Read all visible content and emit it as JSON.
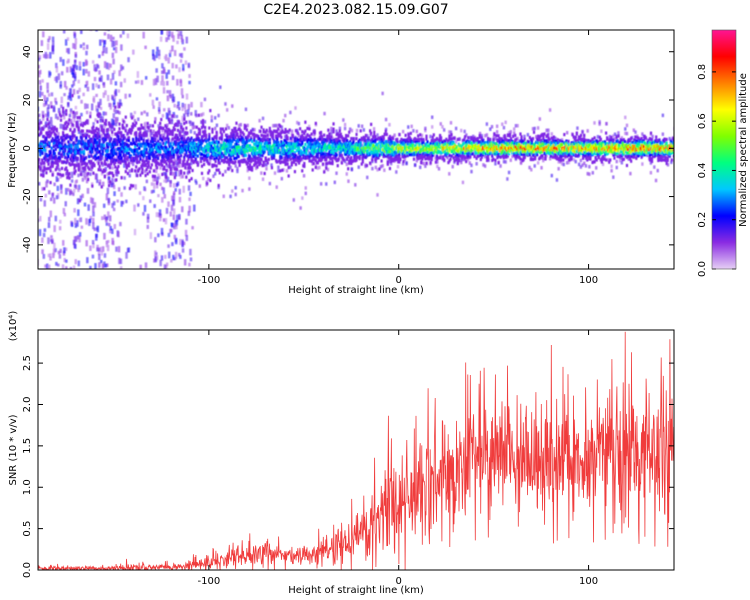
{
  "title": "C2E4.2023.082.15.09.G07",
  "chart_data": [
    {
      "type": "heatmap",
      "title": "C2E4.2023.082.15.09.G07",
      "xlabel": "Height of straight line (km)",
      "ylabel": "Frequency (Hz)",
      "xlim": [
        -190,
        145
      ],
      "ylim": [
        -50,
        49
      ],
      "x_ticks": [
        -100,
        0,
        100
      ],
      "y_ticks": [
        -40,
        -20,
        0,
        20,
        40
      ],
      "colorbar": {
        "label": "Normalized spectral amplitude",
        "range": [
          0,
          0.97
        ],
        "ticks": [
          0.0,
          0.2,
          0.4,
          0.6,
          0.8
        ],
        "colormap": [
          "#e6d0f5",
          "#8a2be2",
          "#0000ff",
          "#00c8ff",
          "#00ff80",
          "#80ff00",
          "#ffff00",
          "#ff8000",
          "#ff0000",
          "#ff1493"
        ]
      },
      "description_profile": {
        "x": [
          -190,
          -170,
          -150,
          -130,
          -110,
          -90,
          -70,
          -50,
          -30,
          -10,
          10,
          30,
          50,
          70,
          90,
          110,
          130,
          145
        ],
        "peak_amplitude": [
          0.3,
          0.3,
          0.3,
          0.32,
          0.35,
          0.45,
          0.45,
          0.42,
          0.45,
          0.6,
          0.7,
          0.78,
          0.85,
          0.85,
          0.8,
          0.85,
          0.88,
          0.88
        ],
        "band_halfwidth_hz": [
          8,
          8,
          8,
          7,
          6,
          6,
          5,
          5,
          4,
          4,
          3,
          3,
          3,
          3,
          3,
          3,
          3,
          3
        ]
      }
    },
    {
      "type": "line",
      "xlabel": "Height of straight line (km)",
      "ylabel": "SNR (10 * v/v)",
      "y_multiplier": "(x10⁴)",
      "xlim": [
        -190,
        145
      ],
      "ylim": [
        0,
        2.9
      ],
      "x_ticks": [
        -100,
        0,
        100
      ],
      "y_ticks": [
        0.0,
        0.5,
        1.0,
        1.5,
        2.0,
        2.5
      ],
      "series": [
        {
          "name": "SNR",
          "color": "#f03c3c",
          "x": [
            -190,
            -170,
            -150,
            -140,
            -130,
            -115,
            -100,
            -90,
            -80,
            -70,
            -60,
            -50,
            -40,
            -30,
            -20,
            -15,
            -10,
            -5,
            0,
            10,
            20,
            30,
            40,
            50,
            60,
            70,
            80,
            90,
            100,
            110,
            120,
            130,
            140,
            145
          ],
          "mean": [
            0.02,
            0.02,
            0.02,
            0.03,
            0.03,
            0.04,
            0.08,
            0.15,
            0.17,
            0.2,
            0.2,
            0.18,
            0.22,
            0.3,
            0.45,
            0.55,
            0.7,
            0.8,
            0.85,
            1.0,
            1.15,
            1.25,
            1.3,
            1.35,
            1.35,
            1.35,
            1.35,
            1.35,
            1.4,
            1.4,
            1.4,
            1.35,
            1.35,
            1.4
          ],
          "spread": [
            0.03,
            0.03,
            0.03,
            0.08,
            0.04,
            0.05,
            0.1,
            0.15,
            0.16,
            0.18,
            0.16,
            0.12,
            0.16,
            0.25,
            0.4,
            0.5,
            0.6,
            0.6,
            0.6,
            0.65,
            0.7,
            0.7,
            0.7,
            0.75,
            0.75,
            0.75,
            0.75,
            0.75,
            0.75,
            0.8,
            0.8,
            0.8,
            0.8,
            0.8
          ]
        }
      ]
    }
  ]
}
